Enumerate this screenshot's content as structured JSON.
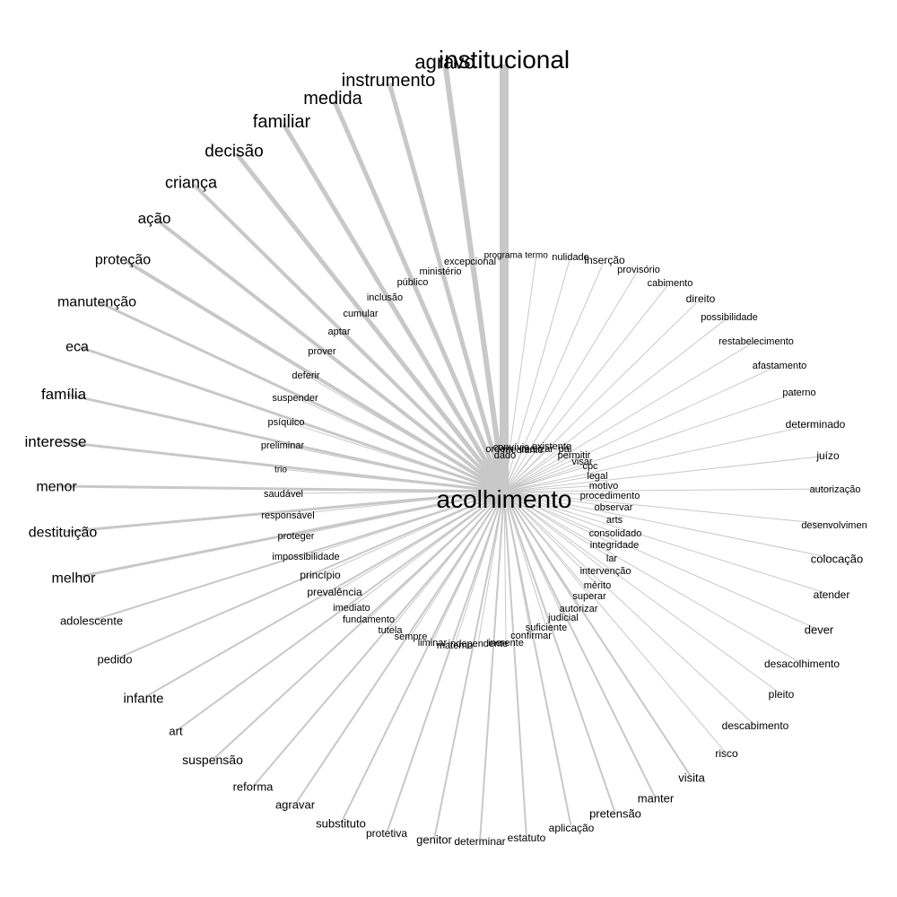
{
  "edge_color": "#c8c8c8",
  "text_color": "#000000",
  "center": {
    "label": "acolhimento"
  },
  "words": [
    {
      "label": "institucional",
      "weight": 10
    },
    {
      "label": "agravo",
      "weight": 6
    },
    {
      "label": "instrumento",
      "weight": 5
    },
    {
      "label": "medida",
      "weight": 5
    },
    {
      "label": "familiar",
      "weight": 5
    },
    {
      "label": "decisão",
      "weight": 5
    },
    {
      "label": "criança",
      "weight": 4
    },
    {
      "label": "ação",
      "weight": 4
    },
    {
      "label": "proteção",
      "weight": 4
    },
    {
      "label": "manutenção",
      "weight": 3
    },
    {
      "label": "eca",
      "weight": 3
    },
    {
      "label": "família",
      "weight": 3
    },
    {
      "label": "interesse",
      "weight": 3
    },
    {
      "label": "menor",
      "weight": 3
    },
    {
      "label": "destituição",
      "weight": 3
    },
    {
      "label": "melhor",
      "weight": 3
    },
    {
      "label": "adolescente",
      "weight": 2
    },
    {
      "label": "pedido",
      "weight": 2
    },
    {
      "label": "infante",
      "weight": 2
    },
    {
      "label": "art",
      "weight": 2
    },
    {
      "label": "suspensão",
      "weight": 2
    },
    {
      "label": "reforma",
      "weight": 2
    },
    {
      "label": "agravar",
      "weight": 2
    },
    {
      "label": "substituto",
      "weight": 2
    },
    {
      "label": "protetiva",
      "weight": 2
    },
    {
      "label": "genitor",
      "weight": 2
    },
    {
      "label": "determinar",
      "weight": 2
    },
    {
      "label": "estatuto",
      "weight": 2
    },
    {
      "label": "aplicação",
      "weight": 2
    },
    {
      "label": "pretensão",
      "weight": 2
    },
    {
      "label": "manter",
      "weight": 2
    },
    {
      "label": "visita",
      "weight": 2
    },
    {
      "label": "risco",
      "weight": 1
    },
    {
      "label": "descabimento",
      "weight": 1
    },
    {
      "label": "pleito",
      "weight": 1
    },
    {
      "label": "desacolhimento",
      "weight": 1
    },
    {
      "label": "dever",
      "weight": 1
    },
    {
      "label": "atender",
      "weight": 1
    },
    {
      "label": "colocação",
      "weight": 1
    },
    {
      "label": "desenvolvimen",
      "weight": 1
    },
    {
      "label": "autorização",
      "weight": 1
    },
    {
      "label": "juízo",
      "weight": 1
    },
    {
      "label": "determinado",
      "weight": 1
    },
    {
      "label": "paterno",
      "weight": 1
    },
    {
      "label": "afastamento",
      "weight": 1
    },
    {
      "label": "restabelecimento",
      "weight": 1
    },
    {
      "label": "possibilidade",
      "weight": 1
    },
    {
      "label": "direito",
      "weight": 1
    },
    {
      "label": "cabimento",
      "weight": 1
    },
    {
      "label": "provisório",
      "weight": 1
    },
    {
      "label": "inserção",
      "weight": 1
    },
    {
      "label": "nulidade",
      "weight": 1
    },
    {
      "label": "termo",
      "weight": 1
    },
    {
      "label": "programa",
      "weight": 1
    },
    {
      "label": "excepcional",
      "weight": 1
    },
    {
      "label": "ministério",
      "weight": 1
    },
    {
      "label": "público",
      "weight": 1
    },
    {
      "label": "inclusão",
      "weight": 1
    },
    {
      "label": "cumular",
      "weight": 1
    },
    {
      "label": "aptar",
      "weight": 1
    },
    {
      "label": "prover",
      "weight": 1
    },
    {
      "label": "deferir",
      "weight": 1
    },
    {
      "label": "suspender",
      "weight": 1
    },
    {
      "label": "psíquico",
      "weight": 1
    },
    {
      "label": "preliminar",
      "weight": 1
    },
    {
      "label": "trio",
      "weight": 1
    },
    {
      "label": "saudável",
      "weight": 1
    },
    {
      "label": "responsável",
      "weight": 1
    },
    {
      "label": "proteger",
      "weight": 1
    },
    {
      "label": "impossibilidade",
      "weight": 1
    },
    {
      "label": "princípio",
      "weight": 1
    },
    {
      "label": "prevalência",
      "weight": 1
    },
    {
      "label": "imediato",
      "weight": 1
    },
    {
      "label": "fundamento",
      "weight": 1
    },
    {
      "label": "tutela",
      "weight": 1
    },
    {
      "label": "sempre",
      "weight": 1
    },
    {
      "label": "liminar",
      "weight": 1
    },
    {
      "label": "materno",
      "weight": 1
    },
    {
      "label": "independente",
      "weight": 1
    },
    {
      "label": "inerente",
      "weight": 1
    },
    {
      "label": "confirmar",
      "weight": 1
    },
    {
      "label": "suficiente",
      "weight": 1
    },
    {
      "label": "judicial",
      "weight": 1
    },
    {
      "label": "autorizar",
      "weight": 1
    },
    {
      "label": "superar",
      "weight": 1
    },
    {
      "label": "mérito",
      "weight": 1
    },
    {
      "label": "intervenção",
      "weight": 1
    },
    {
      "label": "lar",
      "weight": 1
    },
    {
      "label": "integridade",
      "weight": 1
    },
    {
      "label": "consolidado",
      "weight": 1
    },
    {
      "label": "arts",
      "weight": 1
    },
    {
      "label": "observar",
      "weight": 1
    },
    {
      "label": "procedimento",
      "weight": 1
    },
    {
      "label": "motivo",
      "weight": 1
    },
    {
      "label": "legal",
      "weight": 1
    },
    {
      "label": "cpc",
      "weight": 1
    },
    {
      "label": "visar",
      "weight": 1
    },
    {
      "label": "permitir",
      "weight": 1
    },
    {
      "label": "pai",
      "weight": 1
    },
    {
      "label": "existente",
      "weight": 1
    },
    {
      "label": "realizar",
      "weight": 1
    },
    {
      "label": "mediante",
      "weight": 1
    },
    {
      "label": "dado",
      "weight": 1
    },
    {
      "label": "convívio",
      "weight": 1
    },
    {
      "label": "ordem",
      "weight": 1
    }
  ]
}
